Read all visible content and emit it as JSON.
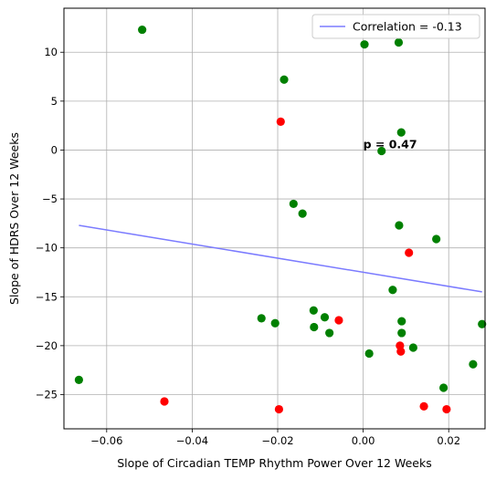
{
  "chart_data": {
    "type": "scatter",
    "xlabel": "Slope of Circadian TEMP Rhythm Power Over 12 Weeks",
    "ylabel": "Slope of HDRS Over 12 Weeks",
    "xlim": [
      -0.07,
      0.0285
    ],
    "ylim": [
      -28.5,
      14.5
    ],
    "xticks": [
      -0.06,
      -0.04,
      -0.02,
      0.0,
      0.02
    ],
    "xtick_labels": [
      "−0.06",
      "−0.04",
      "−0.02",
      "0.00",
      "0.02"
    ],
    "yticks": [
      -25,
      -20,
      -15,
      -10,
      -5,
      0,
      5,
      10
    ],
    "ytick_labels": [
      "−25",
      "−20",
      "−15",
      "−10",
      "−5",
      "0",
      "5",
      "10"
    ],
    "grid": true,
    "legend_position": "top-right",
    "colors": {
      "green": "#008000",
      "red": "#ff0000",
      "line": "#7b7bff"
    },
    "points": [
      {
        "x": -0.0517,
        "y": 12.3,
        "color": "green"
      },
      {
        "x": 0.0003,
        "y": 10.8,
        "color": "green"
      },
      {
        "x": 0.0083,
        "y": 11.0,
        "color": "green"
      },
      {
        "x": -0.0185,
        "y": 7.2,
        "color": "green"
      },
      {
        "x": -0.0193,
        "y": 2.9,
        "color": "red"
      },
      {
        "x": 0.0089,
        "y": 1.8,
        "color": "green"
      },
      {
        "x": 0.0043,
        "y": -0.1,
        "color": "green"
      },
      {
        "x": -0.0163,
        "y": -5.5,
        "color": "green"
      },
      {
        "x": -0.0142,
        "y": -6.5,
        "color": "green"
      },
      {
        "x": 0.0084,
        "y": -7.7,
        "color": "green"
      },
      {
        "x": 0.0171,
        "y": -9.1,
        "color": "green"
      },
      {
        "x": 0.0107,
        "y": -10.5,
        "color": "red"
      },
      {
        "x": 0.0069,
        "y": -14.3,
        "color": "green"
      },
      {
        "x": -0.0238,
        "y": -17.2,
        "color": "green"
      },
      {
        "x": -0.0206,
        "y": -17.7,
        "color": "green"
      },
      {
        "x": -0.0116,
        "y": -16.4,
        "color": "green"
      },
      {
        "x": -0.009,
        "y": -17.1,
        "color": "green"
      },
      {
        "x": -0.0115,
        "y": -18.1,
        "color": "green"
      },
      {
        "x": -0.0079,
        "y": -18.7,
        "color": "green"
      },
      {
        "x": -0.0057,
        "y": -17.4,
        "color": "red"
      },
      {
        "x": 0.009,
        "y": -17.5,
        "color": "green"
      },
      {
        "x": 0.009,
        "y": -18.7,
        "color": "green"
      },
      {
        "x": 0.0278,
        "y": -17.8,
        "color": "green"
      },
      {
        "x": 0.0086,
        "y": -20.0,
        "color": "red"
      },
      {
        "x": 0.0088,
        "y": -20.6,
        "color": "red"
      },
      {
        "x": 0.0117,
        "y": -20.2,
        "color": "green"
      },
      {
        "x": 0.0014,
        "y": -20.8,
        "color": "green"
      },
      {
        "x": 0.0257,
        "y": -21.9,
        "color": "green"
      },
      {
        "x": -0.0665,
        "y": -23.5,
        "color": "green"
      },
      {
        "x": 0.0188,
        "y": -24.3,
        "color": "green"
      },
      {
        "x": -0.0465,
        "y": -25.7,
        "color": "red"
      },
      {
        "x": 0.0142,
        "y": -26.2,
        "color": "red"
      },
      {
        "x": -0.0197,
        "y": -26.5,
        "color": "red"
      },
      {
        "x": 0.0195,
        "y": -26.5,
        "color": "red"
      }
    ],
    "regression_line": {
      "x": [
        -0.0665,
        0.0278
      ],
      "y": [
        -7.7,
        -14.5
      ]
    },
    "legend": {
      "label": "Correlation = -0.13"
    },
    "annotation": {
      "text": "p = 0.47",
      "x": 0.0,
      "y": 0.2
    }
  }
}
